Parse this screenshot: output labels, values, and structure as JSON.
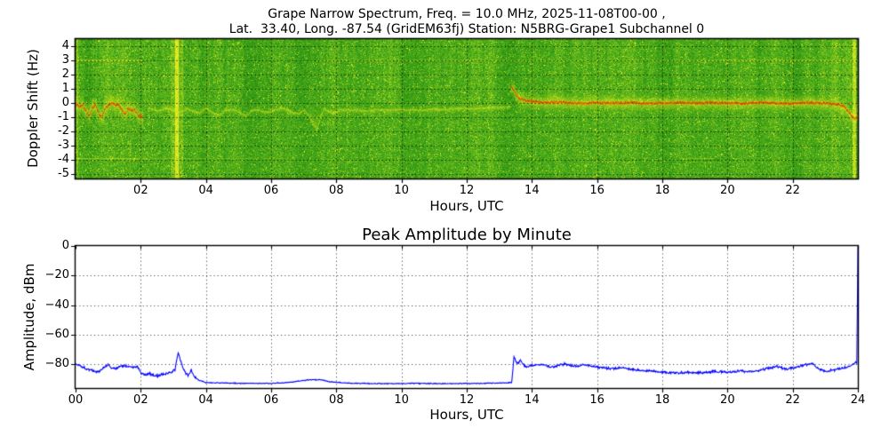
{
  "chart_data": [
    {
      "type": "heatmap",
      "name": "doppler-spectrogram",
      "title": "Grape Narrow Spectrum, Freq. = 10.0 MHz, 2025-11-08T00-00 ,",
      "subtitle": "Lat.  33.40, Long. -87.54 (GridEM63fj) Station: N5BRG-Grape1 Subchannel 0",
      "xlabel": "Hours, UTC",
      "ylabel": "Doppler Shift (Hz)",
      "xlim": [
        0,
        24
      ],
      "ylim": [
        -5.3,
        4.5
      ],
      "xtick_values": [
        2,
        4,
        6,
        8,
        10,
        12,
        14,
        16,
        18,
        20,
        22
      ],
      "xtick_labels": [
        "02",
        "04",
        "06",
        "08",
        "10",
        "12",
        "14",
        "16",
        "18",
        "20",
        "22"
      ],
      "ytick_values": [
        4,
        3,
        2,
        1,
        0,
        -1,
        -2,
        -3,
        -4,
        -5
      ],
      "ytick_labels": [
        "4",
        "3",
        "2",
        "1",
        "0",
        "-1",
        "-2",
        "-3",
        "-4",
        "-5"
      ],
      "grid": {
        "style": "dotted",
        "color": "#000000"
      },
      "colormap": {
        "stops": [
          "#157505",
          "#2e9212",
          "#44a81c",
          "#7cc41e",
          "#b8d81e",
          "#e8ee20"
        ],
        "cloud": "#e4ee1c",
        "trace_core_colors": [
          "#e03000",
          "#d82800",
          "#f05800",
          "#e84400"
        ],
        "trace_halo": "#f08c10"
      },
      "carrier_trace": {
        "segments": [
          {
            "name": "night-strong",
            "start": 0,
            "end": 2.05,
            "style": "red-core-with-cloud",
            "cloud_sigma_hz": 0.34,
            "cloud_intensity": 0.8,
            "points": [
              [
                0,
                -0.05
              ],
              [
                0.1,
                -0.2
              ],
              [
                0.2,
                -0.1
              ],
              [
                0.3,
                -0.55
              ],
              [
                0.4,
                -0.9
              ],
              [
                0.5,
                -0.3
              ],
              [
                0.6,
                -0.15
              ],
              [
                0.7,
                -0.75
              ],
              [
                0.8,
                -0.95
              ],
              [
                0.9,
                -0.35
              ],
              [
                1.0,
                -0.1
              ],
              [
                1.1,
                0.05
              ],
              [
                1.2,
                -0.15
              ],
              [
                1.3,
                -0.1
              ],
              [
                1.4,
                -0.4
              ],
              [
                1.5,
                -0.75
              ],
              [
                1.6,
                -0.35
              ],
              [
                1.7,
                -0.5
              ],
              [
                1.8,
                -0.45
              ],
              [
                1.9,
                -0.85
              ],
              [
                2.0,
                -0.95
              ],
              [
                2.05,
                -1.05
              ]
            ],
            "plumes": [
              [
                0.45,
                0.6
              ],
              [
                1.05,
                1.1
              ],
              [
                1.3,
                0.95
              ],
              [
                1.55,
                0.6
              ]
            ]
          },
          {
            "name": "day-faint",
            "start": 2.2,
            "end": 13.32,
            "style": "faint-yellow-line",
            "cloud_sigma_hz": 0.13,
            "cloud_intensity": 0.38,
            "points": [
              [
                2.25,
                -0.35
              ],
              [
                2.5,
                -0.55
              ],
              [
                2.75,
                -0.35
              ],
              [
                3.0,
                -0.5
              ],
              [
                3.2,
                -0.65
              ],
              [
                3.4,
                -0.4
              ],
              [
                3.6,
                -0.55
              ],
              [
                3.8,
                -0.65
              ],
              [
                4.0,
                -0.35
              ],
              [
                4.2,
                -0.7
              ],
              [
                4.4,
                -0.85
              ],
              [
                4.6,
                -0.5
              ],
              [
                4.8,
                -0.45
              ],
              [
                5.0,
                -0.6
              ],
              [
                5.2,
                -0.9
              ],
              [
                5.4,
                -0.5
              ],
              [
                5.6,
                -0.45
              ],
              [
                5.8,
                -0.65
              ],
              [
                6.0,
                -0.55
              ],
              [
                6.2,
                -0.4
              ],
              [
                6.4,
                -0.35
              ],
              [
                6.6,
                -0.6
              ],
              [
                6.8,
                -0.75
              ],
              [
                7.0,
                -0.5
              ],
              [
                7.15,
                -0.85
              ],
              [
                7.3,
                -1.55
              ],
              [
                7.4,
                -1.9
              ],
              [
                7.5,
                -1.0
              ],
              [
                7.6,
                -0.4
              ],
              [
                7.75,
                -0.55
              ],
              [
                7.9,
                -0.7
              ],
              [
                8.1,
                -0.45
              ],
              [
                8.3,
                -0.5
              ],
              [
                8.6,
                -0.45
              ],
              [
                8.9,
                -0.55
              ],
              [
                9.2,
                -0.45
              ],
              [
                9.5,
                -0.5
              ],
              [
                9.8,
                -0.45
              ],
              [
                10.1,
                -0.5
              ],
              [
                10.4,
                -0.45
              ],
              [
                10.7,
                -0.5
              ],
              [
                11.0,
                -0.4
              ],
              [
                11.3,
                -0.45
              ],
              [
                11.6,
                -0.4
              ],
              [
                11.9,
                -0.35
              ],
              [
                12.2,
                -0.4
              ],
              [
                12.5,
                -0.35
              ],
              [
                12.8,
                -0.3
              ],
              [
                13.1,
                -0.3
              ],
              [
                13.3,
                -0.25
              ]
            ],
            "plumes": [
              [
                2.8,
                0.1
              ],
              [
                7.35,
                0.1
              ]
            ]
          },
          {
            "name": "evening-strong",
            "start": 13.35,
            "end": 24,
            "style": "red-core-with-cloud",
            "cloud_sigma_hz": 0.28,
            "cloud_intensity": 0.85,
            "points": [
              [
                13.35,
                1.15
              ],
              [
                13.42,
                1.0
              ],
              [
                13.5,
                0.6
              ],
              [
                13.6,
                0.35
              ],
              [
                13.75,
                0.2
              ],
              [
                13.9,
                0.15
              ],
              [
                14.1,
                0.1
              ],
              [
                14.4,
                0.05
              ],
              [
                14.7,
                0.1
              ],
              [
                15.0,
                0.05
              ],
              [
                15.5,
                0.0
              ],
              [
                16.0,
                0.05
              ],
              [
                16.5,
                0.0
              ],
              [
                17.0,
                0.05
              ],
              [
                17.5,
                0.0
              ],
              [
                18.0,
                0.0
              ],
              [
                18.5,
                0.05
              ],
              [
                19.0,
                0.0
              ],
              [
                19.5,
                0.05
              ],
              [
                20.0,
                0.0
              ],
              [
                20.5,
                0.0
              ],
              [
                21.0,
                0.05
              ],
              [
                21.5,
                0.0
              ],
              [
                22.0,
                0.0
              ],
              [
                22.5,
                0.05
              ],
              [
                23.0,
                0.0
              ],
              [
                23.4,
                -0.1
              ],
              [
                23.6,
                -0.3
              ],
              [
                23.8,
                -0.9
              ],
              [
                23.9,
                -1.15
              ],
              [
                23.97,
                -0.7
              ],
              [
                24,
                -0.55
              ]
            ],
            "plumes": [
              [
                13.6,
                0.9
              ],
              [
                14.55,
                1.65
              ],
              [
                14.9,
                0.85
              ],
              [
                15.8,
                0.95
              ],
              [
                16.3,
                0.9
              ],
              [
                17.3,
                0.65
              ],
              [
                18.1,
                0.55
              ],
              [
                21.3,
                0.55
              ],
              [
                22.6,
                0.6
              ],
              [
                23.5,
                -1.6
              ]
            ]
          }
        ]
      },
      "events": {
        "vertical_bands": [
          {
            "hour": 0.04,
            "width_hours": 0.08,
            "intensity": 0.22
          },
          {
            "hour": 3.1,
            "width_hours": 0.1,
            "intensity": 0.75
          },
          {
            "hour": 3.1,
            "width_hours": 0.38,
            "intensity": 0.2
          },
          {
            "hour": 23.87,
            "width_hours": 0.1,
            "intensity": 0.5
          }
        ],
        "horizontal_lines": [
          {
            "hz": 3,
            "start": 0,
            "end": 2.05,
            "intensity": 0.8
          },
          {
            "hz": 3,
            "start": 7.4,
            "end": 19,
            "intensity": 0.3
          },
          {
            "hz": 3,
            "start": 19,
            "end": 24,
            "intensity": 0.55
          },
          {
            "hz": -3.9,
            "start": 0,
            "end": 2.1,
            "intensity": 0.45
          },
          {
            "hz": -3.9,
            "start": 2.1,
            "end": 6.8,
            "intensity": 0.2
          },
          {
            "hz": -3.9,
            "start": 18.6,
            "end": 19.6,
            "intensity": 0.25
          }
        ]
      }
    },
    {
      "type": "line",
      "name": "peak-amplitude",
      "title": "Peak Amplitude by Minute",
      "xlabel": "Hours, UTC",
      "ylabel": "Amplitude, dBm",
      "xlim": [
        0,
        24
      ],
      "ylim": [
        -96.2,
        0
      ],
      "xtick_values": [
        0,
        2,
        4,
        6,
        8,
        10,
        12,
        14,
        16,
        18,
        20,
        22,
        24
      ],
      "xtick_labels": [
        "00",
        "02",
        "04",
        "06",
        "08",
        "10",
        "12",
        "14",
        "16",
        "18",
        "20",
        "22",
        "24"
      ],
      "ytick_values": [
        0,
        -20,
        -40,
        -60,
        -80
      ],
      "ytick_labels": [
        "0",
        "−20",
        "−40",
        "−60",
        "−80"
      ],
      "grid": {
        "style": "dotted",
        "color": "#000000"
      },
      "line_color": "#0000ff",
      "series": [
        {
          "name": "peak-amplitude-dbm",
          "keypoints": [
            [
              0,
              -80
            ],
            [
              0.15,
              -81
            ],
            [
              0.3,
              -83
            ],
            [
              0.5,
              -84.5
            ],
            [
              0.7,
              -85
            ],
            [
              0.9,
              -82
            ],
            [
              1.0,
              -80.5
            ],
            [
              1.1,
              -83
            ],
            [
              1.3,
              -82
            ],
            [
              1.5,
              -81
            ],
            [
              1.7,
              -82.5
            ],
            [
              1.9,
              -81.5
            ],
            [
              2.0,
              -86
            ],
            [
              2.1,
              -87
            ],
            [
              2.3,
              -86.5
            ],
            [
              2.5,
              -88
            ],
            [
              2.7,
              -87
            ],
            [
              2.9,
              -86
            ],
            [
              3.05,
              -84
            ],
            [
              3.15,
              -72
            ],
            [
              3.25,
              -80
            ],
            [
              3.35,
              -85
            ],
            [
              3.45,
              -88
            ],
            [
              3.55,
              -84
            ],
            [
              3.65,
              -89
            ],
            [
              3.8,
              -91
            ],
            [
              4.0,
              -92.5
            ],
            [
              5.0,
              -93
            ],
            [
              6.0,
              -93
            ],
            [
              6.5,
              -92.5
            ],
            [
              7.2,
              -90.5
            ],
            [
              7.5,
              -90.5
            ],
            [
              7.8,
              -92
            ],
            [
              8.5,
              -93
            ],
            [
              9.5,
              -93.2
            ],
            [
              10.5,
              -93
            ],
            [
              11.5,
              -93.2
            ],
            [
              12.5,
              -93
            ],
            [
              13.0,
              -92.8
            ],
            [
              13.38,
              -92.5
            ],
            [
              13.45,
              -75
            ],
            [
              13.55,
              -80
            ],
            [
              13.65,
              -77.5
            ],
            [
              13.8,
              -82
            ],
            [
              14.0,
              -81
            ],
            [
              14.3,
              -80.5
            ],
            [
              14.6,
              -82
            ],
            [
              15.0,
              -80
            ],
            [
              15.3,
              -81.5
            ],
            [
              15.6,
              -80.5
            ],
            [
              16.0,
              -82
            ],
            [
              16.4,
              -83
            ],
            [
              16.8,
              -82.5
            ],
            [
              17.2,
              -84
            ],
            [
              17.6,
              -84.5
            ],
            [
              18.0,
              -85.5
            ],
            [
              18.4,
              -86
            ],
            [
              18.8,
              -85.5
            ],
            [
              19.2,
              -86
            ],
            [
              19.6,
              -85
            ],
            [
              20.0,
              -85.5
            ],
            [
              20.4,
              -84.5
            ],
            [
              20.8,
              -85
            ],
            [
              21.2,
              -83
            ],
            [
              21.5,
              -81.5
            ],
            [
              21.8,
              -83.5
            ],
            [
              22.1,
              -82
            ],
            [
              22.4,
              -80.5
            ],
            [
              22.6,
              -79.5
            ],
            [
              22.8,
              -83
            ],
            [
              23.0,
              -85
            ],
            [
              23.2,
              -84
            ],
            [
              23.5,
              -83
            ],
            [
              23.7,
              -82
            ],
            [
              23.85,
              -80.5
            ],
            [
              23.93,
              -78.5
            ],
            [
              23.97,
              -80
            ],
            [
              24,
              0
            ]
          ]
        }
      ]
    }
  ]
}
